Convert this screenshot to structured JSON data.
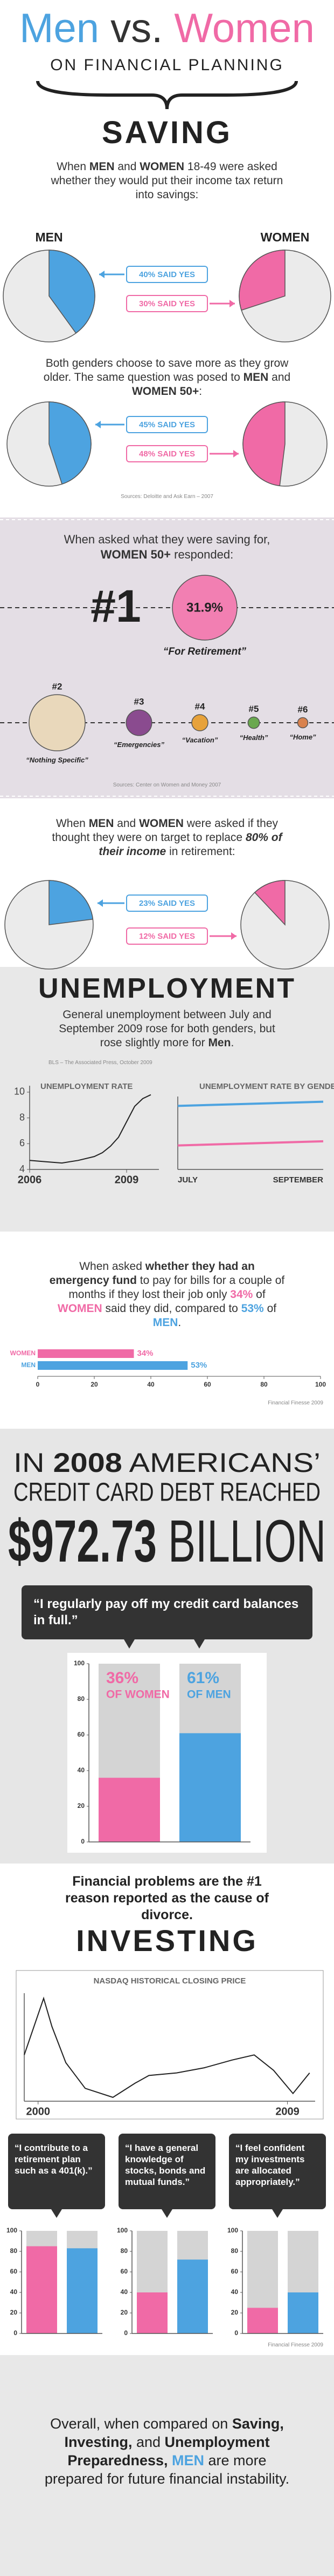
{
  "header": {
    "title": {
      "parts": [
        {
          "text": "Men",
          "color": "#4da3e0"
        },
        {
          "text": " vs. ",
          "color": "#333333"
        },
        {
          "text": "Women",
          "color": "#f06aa6"
        }
      ]
    },
    "subtitle": "ON FINANCIAL PLANNING"
  },
  "saving": {
    "heading": "SAVING",
    "intro": {
      "parts": [
        {
          "text": "When "
        },
        {
          "text": "MEN",
          "bold": true
        },
        {
          "text": " and "
        },
        {
          "text": "WOMEN",
          "bold": true
        },
        {
          "text": " 18-49 were asked whether they would put their income tax return into savings:"
        }
      ]
    },
    "men_label": "MEN",
    "women_label": "WOMEN",
    "middle": {
      "parts": [
        {
          "text": "Both genders choose to save more as they grow older. The same question was posed to "
        },
        {
          "text": "MEN",
          "bold": true
        },
        {
          "text": " and "
        },
        {
          "text": "WOMEN 50+",
          "bold": true
        },
        {
          "text": ":"
        }
      ]
    },
    "source": "Sources: Deloitte and Ask Earn – 2007"
  },
  "retirement": {
    "question": {
      "parts": [
        {
          "text": "When asked what they were saving for, "
        },
        {
          "text": "WOMEN 50+",
          "bold": true
        },
        {
          "text": " responded:"
        }
      ]
    },
    "source": "Sources: Center on Women and Money 2007"
  },
  "target": {
    "question": {
      "parts": [
        {
          "text": "When "
        },
        {
          "text": "MEN",
          "bold": true
        },
        {
          "text": " and "
        },
        {
          "text": "WOMEN",
          "bold": true
        },
        {
          "text": " were asked if they thought they were on target to replace "
        },
        {
          "text": "80% of their income",
          "bold": true,
          "italic": true
        },
        {
          "text": " in retirement:"
        }
      ]
    }
  },
  "unemployment": {
    "heading": "UNEMPLOYMENT",
    "intro": {
      "parts": [
        {
          "text": "General unemployment between July and September 2009 rose for both genders, but rose slightly more for "
        },
        {
          "text": "Men",
          "bold": true
        },
        {
          "text": "."
        }
      ]
    },
    "source": "BLS – The Associated Press, October 2009"
  },
  "emergency": {
    "text": {
      "parts": [
        {
          "text": "When asked "
        },
        {
          "text": "whether they had an emergency fund",
          "bold": true
        },
        {
          "text": " to pay for bills for a couple of months if they lost their job only "
        },
        {
          "text": "34%",
          "color": "#f06aa6",
          "bold": true
        },
        {
          "text": " of "
        },
        {
          "text": "WOMEN",
          "color": "#f06aa6",
          "bold": true
        },
        {
          "text": " said they did, compared to "
        },
        {
          "text": "53%",
          "color": "#4da3e0",
          "bold": true
        },
        {
          "text": " of "
        },
        {
          "text": "MEN",
          "color": "#4da3e0",
          "bold": true
        },
        {
          "text": "."
        }
      ]
    },
    "source": "Financial Finesse 2009"
  },
  "credit": {
    "line1": {
      "parts": [
        {
          "text": "IN "
        },
        {
          "text": "2008",
          "bold": true
        },
        {
          "text": " AMERICANS’"
        }
      ]
    },
    "line2": "CREDIT CARD DEBT REACHED",
    "amount": {
      "parts": [
        {
          "text": "$972.73",
          "bold": true
        },
        {
          "text": " BILLION"
        }
      ]
    },
    "quote": "“I regularly pay off my credit card balances in full.”",
    "divorce": "Financial problems are the #1 reason reported as the cause of divorce."
  },
  "investing": {
    "heading": "INVESTING",
    "quotes": [
      "“I contribute to a retirement plan such as a 401(k).”",
      "“I have a general knowledge of stocks, bonds and mutual funds.”",
      "“I feel confident my investments are allocated appropriately.”"
    ],
    "source": "Financial Finesse 2009"
  },
  "conclusion": {
    "parts": [
      {
        "text": "Overall, when compared on "
      },
      {
        "text": "Saving, Investing,",
        "bold": true
      },
      {
        "text": " and "
      },
      {
        "text": "Unemployment Preparedness,",
        "bold": true
      },
      {
        "text": " "
      },
      {
        "text": "MEN",
        "bold": true,
        "color": "#4da3e0"
      },
      {
        "text": " are more prepared for future financial instability."
      }
    ]
  },
  "chart_data": [
    {
      "type": "pie",
      "values": [
        40,
        30
      ],
      "value_labels": [
        "40% SAID YES",
        "30% SAID YES"
      ],
      "colors": [
        "#4da3e0",
        "#f06aa6"
      ]
    },
    {
      "type": "pie",
      "values": [
        45,
        48
      ],
      "value_labels": [
        "45% SAID YES",
        "48% SAID YES"
      ],
      "colors": [
        "#4da3e0",
        "#f06aa6"
      ]
    },
    {
      "type": "bubble",
      "categories": [
        "#1",
        "#2",
        "#3",
        "#4",
        "#5",
        "#6"
      ],
      "names": [
        "“For Retirement”",
        "“Nothing Specific”",
        "“Emergencies”",
        "“Vacation”",
        "“Health”",
        "“Home”"
      ],
      "values": [
        31.9,
        24,
        5,
        2,
        1,
        0.8
      ],
      "value_labels": [
        "31.9%",
        null,
        null,
        null,
        null,
        null
      ],
      "colors": [
        "#f27fb2",
        "#e9d8bb",
        "#8a4b8f",
        "#e7a23b",
        "#6aa84f",
        "#d9824e"
      ]
    },
    {
      "type": "pie",
      "values": [
        23,
        12
      ],
      "value_labels": [
        "23% SAID YES",
        "12% SAID YES"
      ],
      "colors": [
        "#4da3e0",
        "#f06aa6"
      ]
    },
    {
      "type": "line",
      "title": "UNEMPLOYMENT RATE",
      "x": [
        2006,
        2006.5,
        2007,
        2007.5,
        2008,
        2008.25,
        2008.5,
        2008.75,
        2009,
        2009.25,
        2009.5,
        2009.75
      ],
      "values": [
        4.7,
        4.6,
        4.5,
        4.7,
        5.0,
        5.3,
        5.8,
        6.5,
        7.7,
        8.9,
        9.5,
        9.8
      ],
      "color": "#222222",
      "xlim": [
        2006,
        2010
      ],
      "xticks": [
        2006,
        2009
      ],
      "ylim": [
        4,
        10.5
      ],
      "yticks": [
        4,
        6,
        8,
        10
      ]
    },
    {
      "type": "line",
      "title": "UNEMPLOYMENT RATE BY GENDER",
      "categories": [
        "JULY",
        null,
        "SEPTEMBER"
      ],
      "series": [
        {
          "color": "#4da3e0",
          "values": [
            10.1,
            10.3,
            10.5
          ]
        },
        {
          "color": "#f06aa6",
          "values": [
            6.3,
            6.5,
            6.7
          ]
        }
      ],
      "ylim": [
        4,
        11
      ]
    },
    {
      "type": "hbar",
      "categories": [
        "WOMEN",
        "MEN"
      ],
      "values": [
        34,
        53
      ],
      "value_labels": [
        "34%",
        "53%"
      ],
      "colors": [
        "#f06aa6",
        "#4da3e0"
      ],
      "xlim": [
        0,
        100
      ],
      "xticks": [
        0,
        20,
        40,
        60,
        80,
        100
      ]
    },
    {
      "type": "bar",
      "categories": [
        "OF WOMEN",
        "OF MEN"
      ],
      "values": [
        36,
        61
      ],
      "value_labels": [
        "36%",
        "61%"
      ],
      "colors": [
        "#f06aa6",
        "#4da3e0"
      ],
      "ylim": [
        0,
        100
      ],
      "yticks": [
        0,
        20,
        40,
        60,
        80,
        100
      ]
    },
    {
      "type": "line",
      "title": "NASDAQ HISTORICAL CLOSING PRICE",
      "x": [
        1999.5,
        2000.2,
        2000.5,
        2001,
        2001.7,
        2002.7,
        2003.5,
        2004,
        2005,
        2006,
        2007,
        2007.8,
        2008.5,
        2009.2,
        2009.8
      ],
      "values": [
        2800,
        5000,
        3900,
        2500,
        1500,
        1150,
        1700,
        2000,
        2100,
        2300,
        2600,
        2800,
        2200,
        1300,
        2100
      ],
      "color": "#222222",
      "xlim": [
        1999.5,
        2010
      ],
      "xticks": [
        2000,
        2009
      ],
      "ylim": [
        1000,
        5200
      ]
    },
    {
      "type": "bar",
      "values": [
        85,
        83
      ],
      "colors": [
        "#f06aa6",
        "#4da3e0"
      ],
      "ylim": [
        0,
        100
      ],
      "yticks": [
        0,
        20,
        40,
        60,
        80,
        100
      ]
    },
    {
      "type": "bar",
      "values": [
        40,
        72
      ],
      "colors": [
        "#f06aa6",
        "#4da3e0"
      ],
      "ylim": [
        0,
        100
      ],
      "yticks": [
        0,
        20,
        40,
        60,
        80,
        100
      ]
    },
    {
      "type": "bar",
      "values": [
        25,
        40
      ],
      "colors": [
        "#f06aa6",
        "#4da3e0"
      ],
      "ylim": [
        0,
        100
      ],
      "yticks": [
        0,
        20,
        40,
        60,
        80,
        100
      ]
    }
  ]
}
